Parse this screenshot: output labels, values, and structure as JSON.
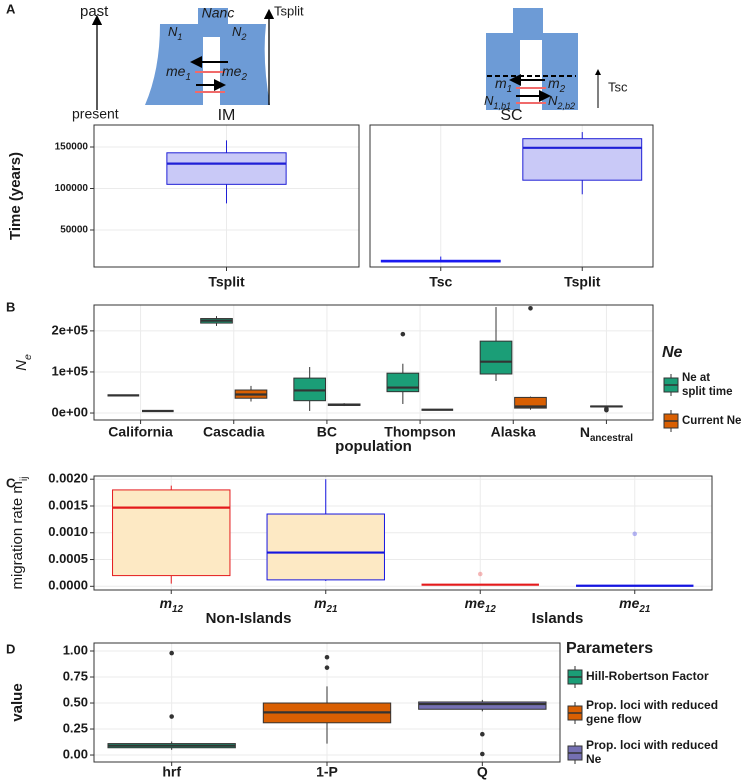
{
  "panel_labels": [
    "A",
    "B",
    "C",
    "D"
  ],
  "diagram": {
    "past": "past",
    "present": "present",
    "im_split": "Tsplit",
    "im_anc": "Nanc",
    "im_n1": {
      "text": "N",
      "sub": "1"
    },
    "im_n2": {
      "text": "N",
      "sub": "2"
    },
    "im_me1": {
      "text": "me",
      "sub": "1"
    },
    "im_me2": {
      "text": "me",
      "sub": "2"
    },
    "sc_m1": {
      "text": "m",
      "sub": "1"
    },
    "sc_m2": {
      "text": "m",
      "sub": "2"
    },
    "sc_n1": {
      "text": "N",
      "sub": "1,b1"
    },
    "sc_n2": {
      "text": "N",
      "sub": "2,b2"
    },
    "sc_tsc": "Tsc"
  },
  "chart_data": [
    {
      "type": "box",
      "title": "IM",
      "y_label": "Time (years)",
      "categories": [
        "Tsplit"
      ],
      "ylim": [
        5400,
        176500
      ],
      "yticks": [
        50000,
        100000,
        150000
      ],
      "grid": true,
      "series": [
        {
          "color": "#1f1fd6",
          "fill": "#c9c9f7",
          "values": [
            {
              "min": 82000,
              "q1": 105000,
              "median": 130000,
              "q3": 143000,
              "max": 158000
            }
          ]
        }
      ]
    },
    {
      "type": "box",
      "title": "SC",
      "categories": [
        "Tsc",
        "Tsplit"
      ],
      "ylim": [
        5400,
        176500
      ],
      "grid": true,
      "series": [
        {
          "color": "#1a1aef",
          "fill": "#1a1aef",
          "values": [
            {
              "min": 11000,
              "q1": 11500,
              "median": 12500,
              "q3": 13500,
              "max": 18000
            },
            null
          ]
        },
        {
          "color": "#1f1fd6",
          "fill": "#c9c9f7",
          "values": [
            null,
            {
              "min": 93000,
              "q1": 110000,
              "median": 149000,
              "q3": 160000,
              "max": 168000
            }
          ]
        }
      ]
    },
    {
      "type": "box",
      "y_label": {
        "text": "N",
        "sub": "e"
      },
      "x_label": "population",
      "legend_title": "Ne",
      "dodge": true,
      "categories": [
        "California",
        "Cascadia",
        "BC",
        "Thompson",
        "Alaska",
        {
          "text": "N",
          "sub": "ancestral"
        }
      ],
      "ylim": [
        -17000,
        263000
      ],
      "yticks": [
        {
          "value": 0,
          "label": "0e+00"
        },
        {
          "value": 100000,
          "label": "1e+05"
        },
        {
          "value": 200000,
          "label": "2e+05"
        }
      ],
      "grid": true,
      "series": [
        {
          "name": "Ne at split time",
          "color": "#333333",
          "fill": "#1b9e77",
          "values": [
            {
              "min": 43000,
              "q1": 43000,
              "median": 43000,
              "q3": 43000,
              "max": 43000
            },
            {
              "min": 212000,
              "q1": 219000,
              "median": 225000,
              "q3": 230000,
              "max": 236000
            },
            {
              "min": 5000,
              "q1": 30000,
              "median": 55000,
              "q3": 85000,
              "max": 112000
            },
            {
              "min": 22000,
              "q1": 52000,
              "median": 62000,
              "q3": 97000,
              "max": 120000,
              "outliers": [
                192000
              ]
            },
            {
              "min": 78000,
              "q1": 95000,
              "median": 125000,
              "q3": 175000,
              "max": 258000
            },
            {
              "min": 14000,
              "q1": 15000,
              "median": 16000,
              "q3": 17000,
              "max": 18000,
              "outliers": [
                7000,
                10000
              ]
            }
          ]
        },
        {
          "name": "Current Ne",
          "color": "#333333",
          "fill": "#d95f02",
          "values": [
            {
              "min": 5000,
              "q1": 5000,
              "median": 5000,
              "q3": 5000,
              "max": 5000
            },
            {
              "min": 28000,
              "q1": 36000,
              "median": 45000,
              "q3": 56000,
              "max": 66000
            },
            {
              "min": 17000,
              "q1": 18500,
              "median": 20000,
              "q3": 22000,
              "max": 24000
            },
            {
              "min": 8000,
              "q1": 8000,
              "median": 8000,
              "q3": 8000,
              "max": 8000
            },
            {
              "min": 8000,
              "q1": 12000,
              "median": 16000,
              "q3": 38000,
              "max": 40000,
              "outliers": [
                255000
              ]
            },
            null
          ]
        }
      ]
    },
    {
      "type": "box",
      "y_label": {
        "text": "migration rate m",
        "sub": "ij"
      },
      "categories": [
        {
          "text": "m",
          "sub": "12"
        },
        {
          "text": "m",
          "sub": "21"
        },
        {
          "text": "me",
          "sub": "12"
        },
        {
          "text": "me",
          "sub": "21"
        }
      ],
      "group_labels": [
        "Non-Islands",
        "Islands"
      ],
      "ylim": [
        -6.9e-05,
        0.00206
      ],
      "yticks": [
        {
          "value": 0,
          "label": "0.0000"
        },
        {
          "value": 0.0005,
          "label": "0.0005"
        },
        {
          "value": 0.001,
          "label": "0.0010"
        },
        {
          "value": 0.0015,
          "label": "0.0015"
        },
        {
          "value": 0.002,
          "label": "0.0020"
        }
      ],
      "grid": true,
      "outlier_opacity": 0.3,
      "series": [
        {
          "color": "#e41a1c",
          "fill": "#fde9c4",
          "values": [
            {
              "min": 5e-05,
              "q1": 0.0002,
              "median": 0.00147,
              "q3": 0.0018,
              "max": 0.00188
            },
            null,
            {
              "min": 3e-05,
              "q1": 3e-05,
              "median": 3e-05,
              "q3": 3e-05,
              "max": 3e-05,
              "outliers": [
                0.00023
              ]
            },
            null
          ]
        },
        {
          "color": "#1515e0",
          "fill": "#fde9c4",
          "values": [
            null,
            {
              "min": 0.0001,
              "q1": 0.00012,
              "median": 0.00063,
              "q3": 0.00135,
              "max": 0.002
            },
            null,
            {
              "min": 1e-05,
              "q1": 1e-05,
              "median": 1e-05,
              "q3": 1e-05,
              "max": 1e-05,
              "outliers": [
                0.00098
              ]
            }
          ]
        }
      ]
    },
    {
      "type": "box",
      "y_label": "value",
      "legend_title": "Parameters",
      "categories": [
        "hrf",
        "1-P",
        "Q"
      ],
      "ylim": [
        -0.067,
        1.077
      ],
      "yticks": [
        {
          "value": 0,
          "label": "0.00"
        },
        {
          "value": 0.25,
          "label": "0.25"
        },
        {
          "value": 0.5,
          "label": "0.50"
        },
        {
          "value": 0.75,
          "label": "0.75"
        },
        {
          "value": 1,
          "label": "1.00"
        }
      ],
      "grid": true,
      "series": [
        {
          "name": "Hill-Robertson Factor",
          "color": "#333333",
          "fill": "#1b9e77",
          "values": [
            {
              "min": 0.05,
              "q1": 0.07,
              "median": 0.09,
              "q3": 0.11,
              "max": 0.13,
              "outliers": [
                0.37,
                0.98
              ]
            },
            null,
            null
          ]
        },
        {
          "name": "Prop. loci with reduced gene flow",
          "color": "#333333",
          "fill": "#d95f02",
          "values": [
            null,
            {
              "min": 0.11,
              "q1": 0.31,
              "median": 0.41,
              "q3": 0.5,
              "max": 0.66,
              "outliers": [
                0.84,
                0.94
              ]
            },
            null
          ]
        },
        {
          "name": "Prop. loci with reduced Ne",
          "color": "#333333",
          "fill": "#7570b3",
          "values": [
            null,
            null,
            {
              "min": 0.42,
              "q1": 0.44,
              "median": 0.49,
              "q3": 0.51,
              "max": 0.53,
              "outliers": [
                0.2,
                0.01
              ]
            }
          ]
        }
      ]
    }
  ]
}
